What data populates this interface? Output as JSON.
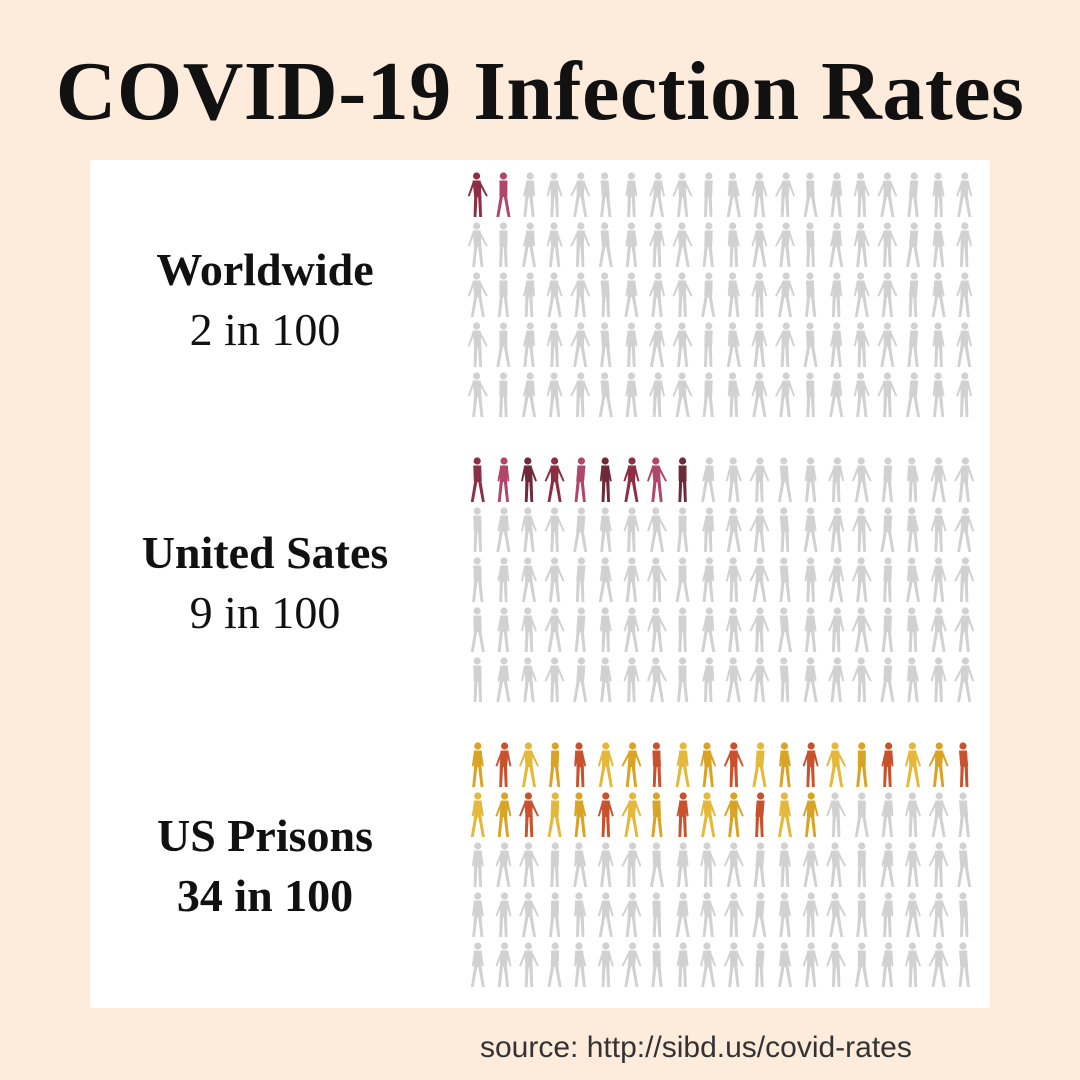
{
  "title": "COVID-19 Infection Rates",
  "source": "source: http://sibd.us/covid-rates",
  "chart_data": {
    "type": "pictograph",
    "title": "COVID-19 Infection Rates",
    "units_per_icon": 1,
    "total": 100,
    "rows_per_group": 5,
    "icons_per_row": 20,
    "colors": {
      "uninfected": "#c9c9c9",
      "infected_general": [
        "#8b2f45",
        "#b0476b",
        "#6e2a3a"
      ],
      "infected_prison": [
        "#d9a425",
        "#c9522e",
        "#e4b83a"
      ]
    },
    "groups": [
      {
        "label": "Worldwide",
        "rate_text": "2 in 100",
        "infected": 2,
        "total": 100,
        "palette": "infected_general"
      },
      {
        "label": "United Sates",
        "rate_text": "9 in 100",
        "infected": 9,
        "total": 100,
        "palette": "infected_general"
      },
      {
        "label": "US Prisons",
        "rate_text": "34 in 100",
        "infected": 34,
        "total": 100,
        "palette": "infected_prison"
      }
    ]
  }
}
